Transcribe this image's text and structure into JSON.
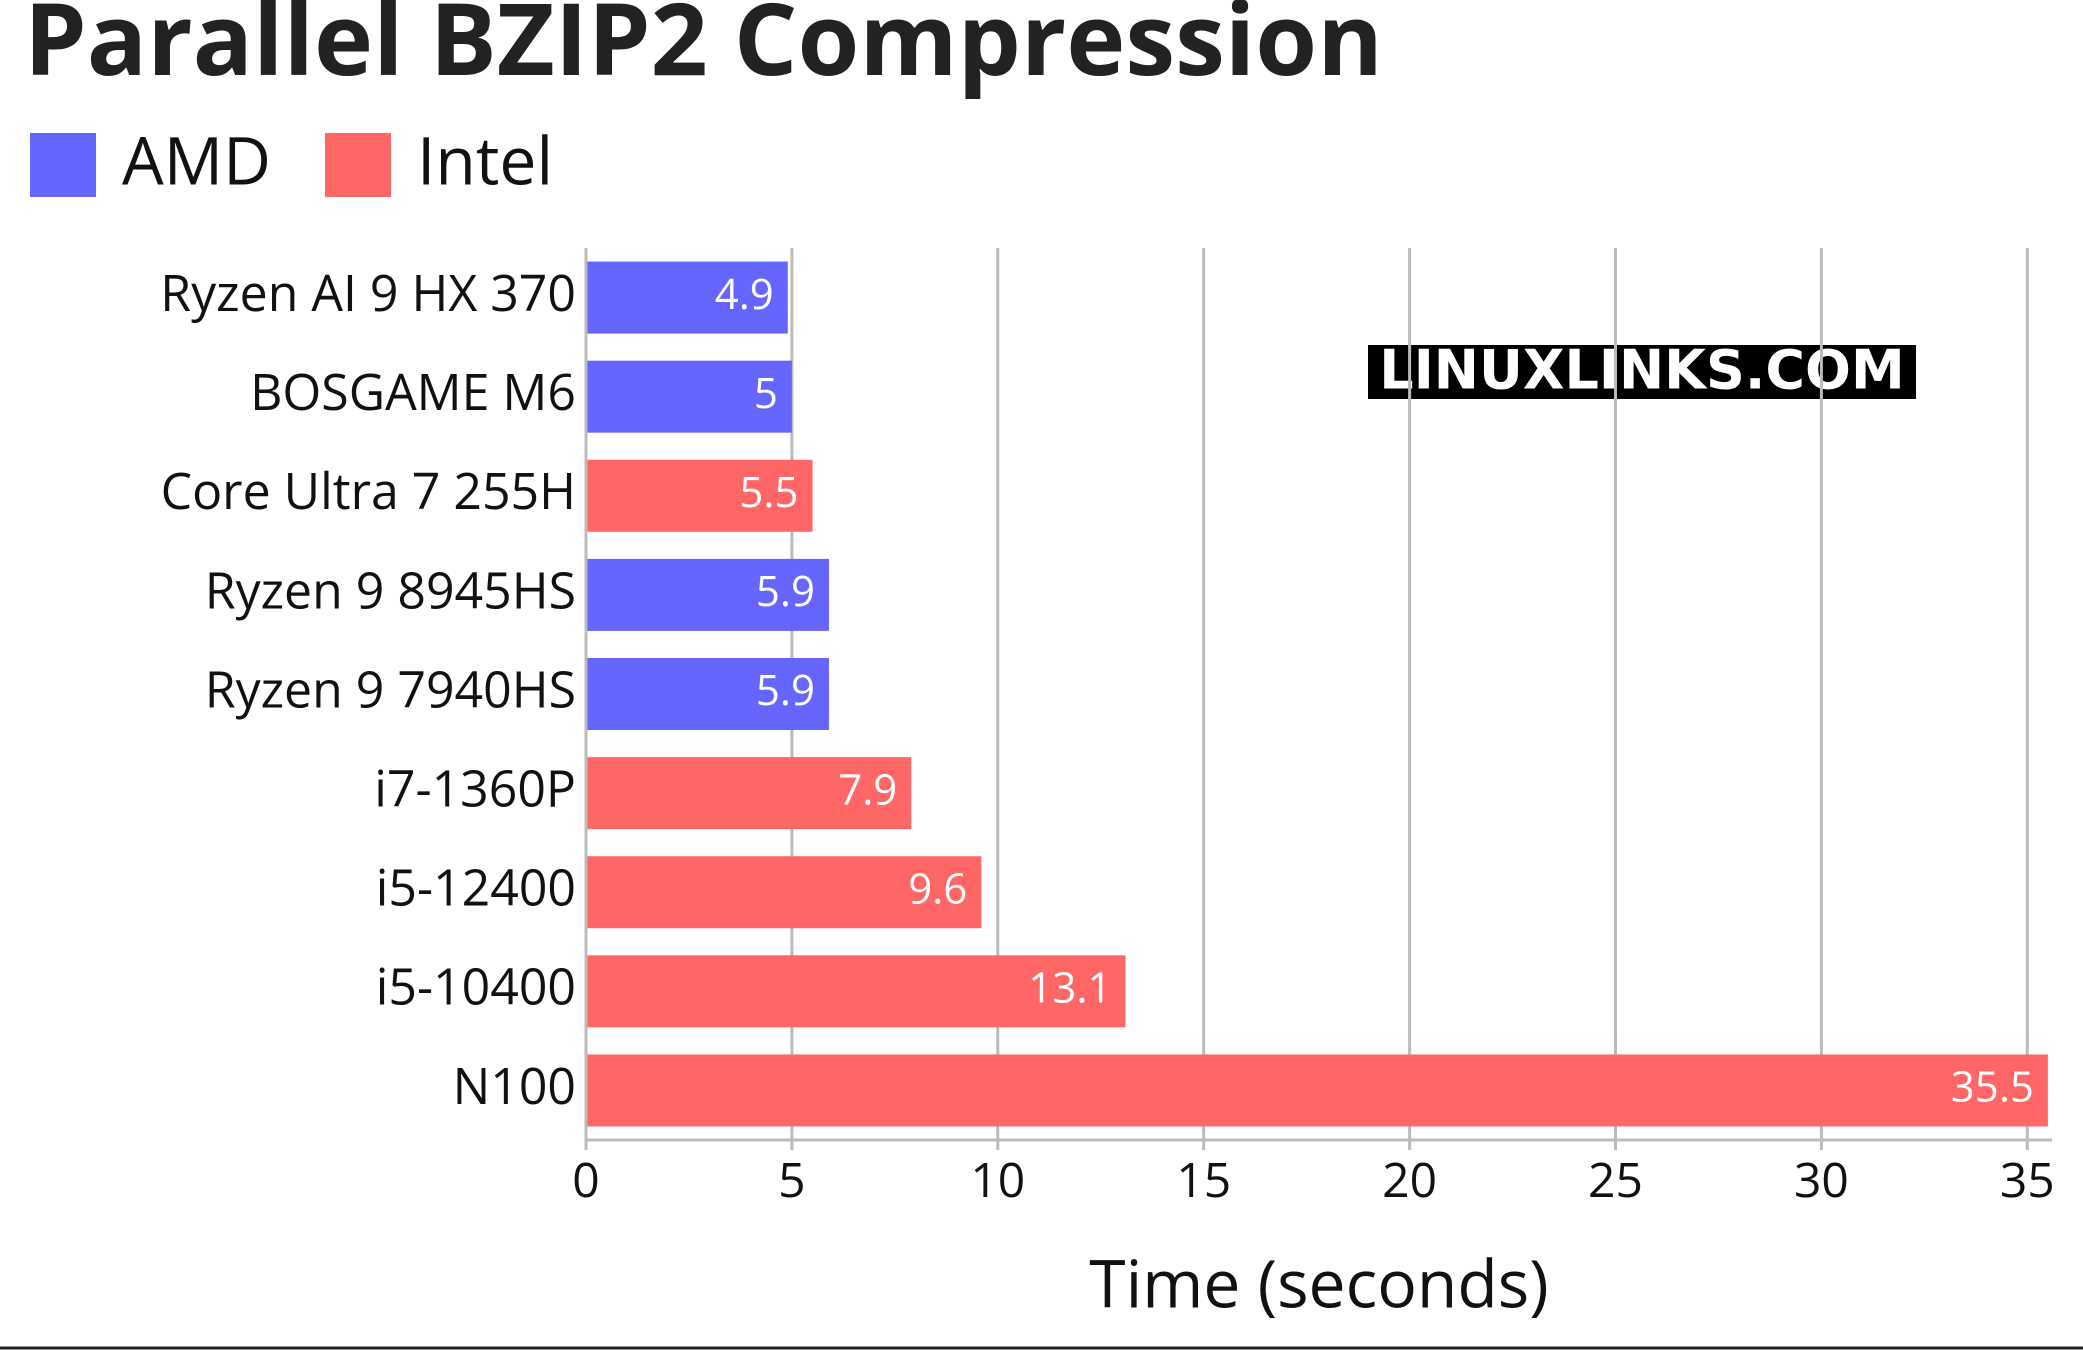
{
  "chart_data": {
    "type": "bar",
    "orientation": "horizontal",
    "title": "Parallel BZIP2 Compression",
    "x_label": "Time (seconds)",
    "watermark": "LINUXLINKS.COM",
    "categories": [
      "Ryzen AI 9 HX 370",
      "BOSGAME M6",
      "Core Ultra 7 255H",
      "Ryzen 9 8945HS",
      "Ryzen 9 7940HS",
      "i7-1360P",
      "i5-12400",
      "i5-10400",
      "N100"
    ],
    "series": [
      {
        "name": "AMD",
        "color": "#6666ff",
        "values": [
          4.9,
          5,
          null,
          5.9,
          5.9,
          null,
          null,
          null,
          null
        ]
      },
      {
        "name": "Intel",
        "color": "#ff6666",
        "values": [
          null,
          null,
          5.5,
          null,
          null,
          7.9,
          9.6,
          13.1,
          35.5
        ]
      }
    ],
    "xlim": [
      0,
      35.6
    ],
    "xticks": [
      0,
      5,
      10,
      15,
      20,
      25,
      30,
      35
    ],
    "grid": true,
    "legend": "top-left"
  }
}
